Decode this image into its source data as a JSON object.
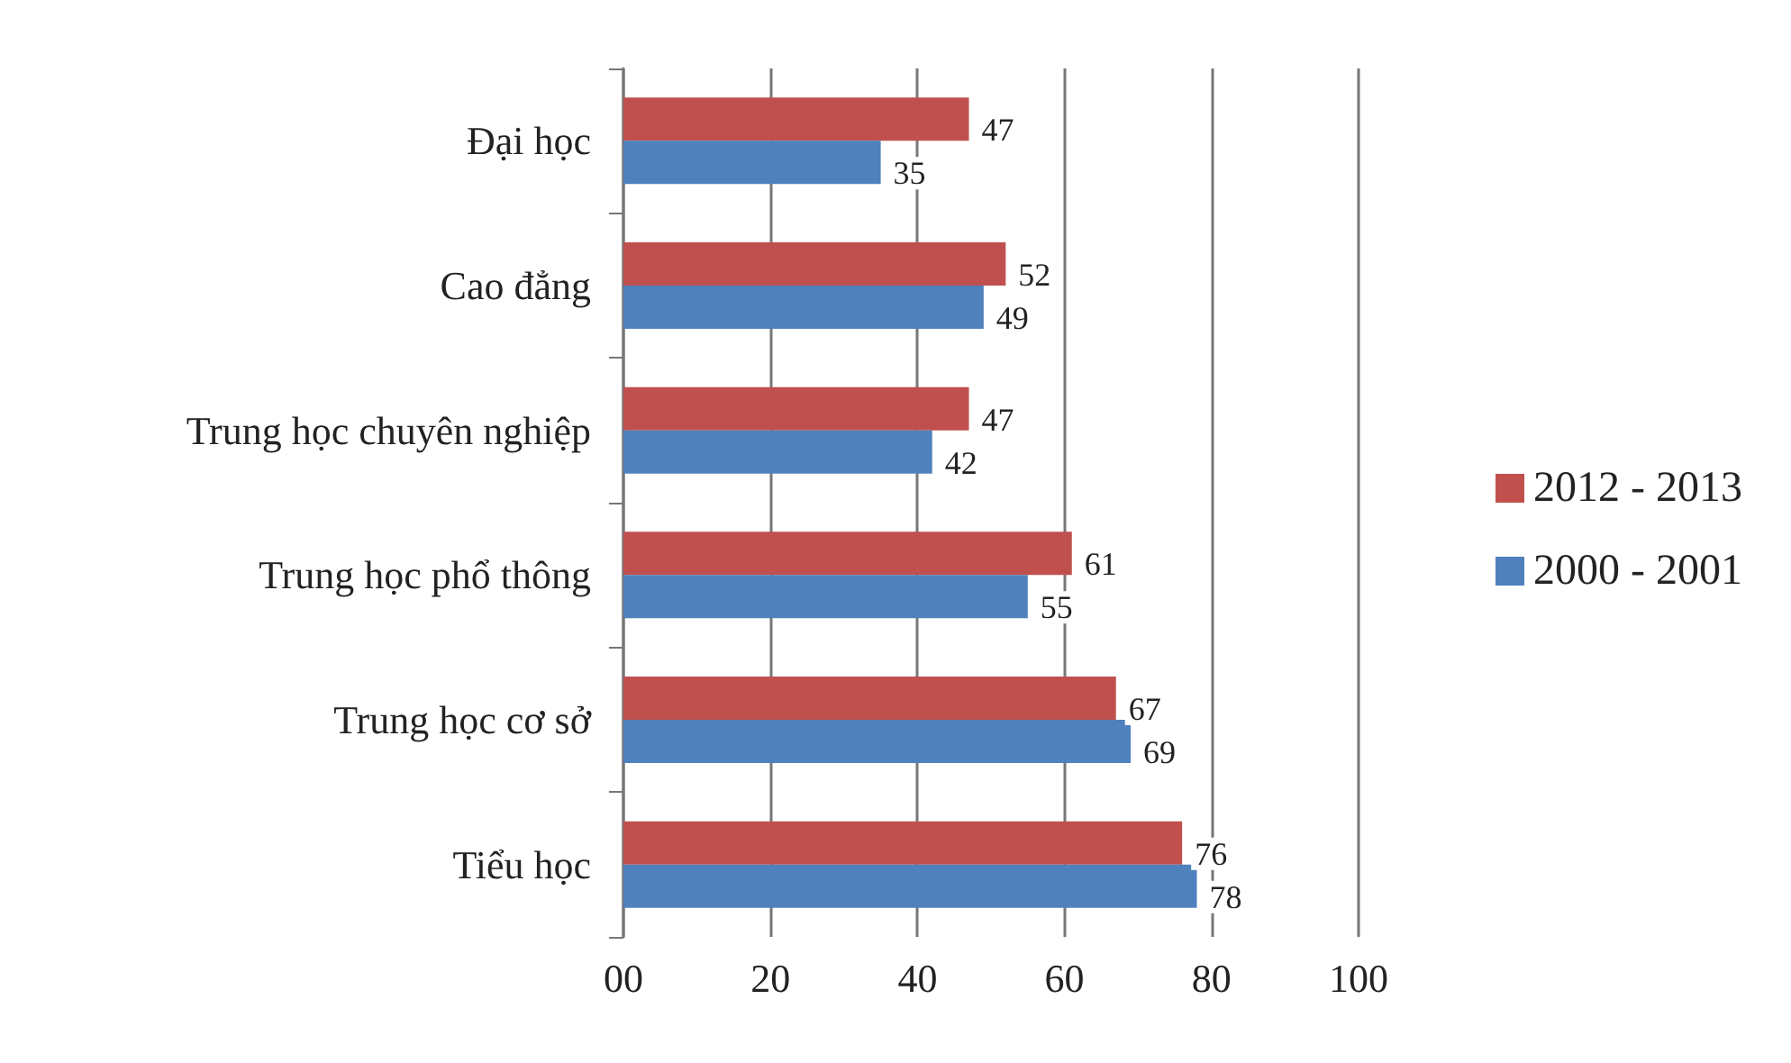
{
  "chart_data": {
    "type": "bar",
    "orientation": "horizontal",
    "categories": [
      "Đại học",
      "Cao đẳng",
      "Trung học chuyên nghiệp",
      "Trung học phổ thông",
      "Trung học cơ sở",
      "Tiểu học"
    ],
    "series": [
      {
        "name": "2012 - 2013",
        "color": "#c0504d",
        "values": [
          47,
          52,
          47,
          61,
          67,
          76
        ]
      },
      {
        "name": "2000 - 2001",
        "color": "#4f81bd",
        "values": [
          35,
          49,
          42,
          55,
          69,
          78
        ]
      }
    ],
    "xlim": [
      0,
      100
    ],
    "xticks": [
      {
        "value": 0,
        "label": "00"
      },
      20,
      40,
      60,
      80,
      100
    ],
    "grid": "x",
    "legend": "right",
    "data_labels": true
  }
}
